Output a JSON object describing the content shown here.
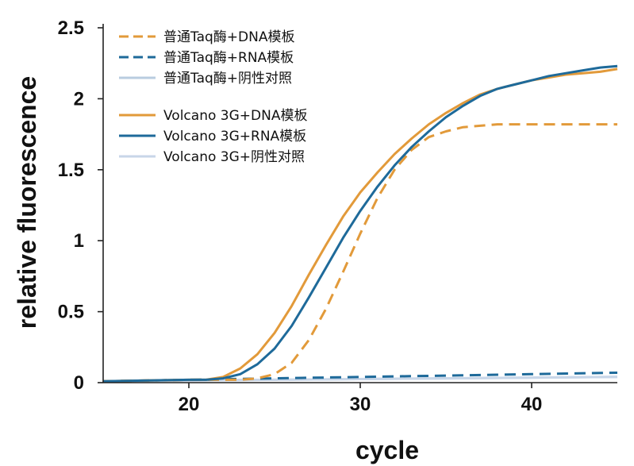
{
  "chart_data": {
    "type": "line",
    "xlabel": "cycle",
    "ylabel": "relative fluorescence",
    "xlim": [
      15,
      45
    ],
    "ylim": [
      0,
      2.5
    ],
    "x_ticks": [
      20,
      30,
      40
    ],
    "y_ticks": [
      0,
      0.5,
      1,
      1.5,
      2,
      2.5
    ],
    "x_tick_labels": [
      "20",
      "30",
      "40"
    ],
    "y_tick_labels": [
      "0",
      "0.5",
      "1",
      "1.5",
      "2",
      "2.5"
    ],
    "grid": false,
    "legend_position": "top-left",
    "series": [
      {
        "name": "普通Taq酶+DNA模板",
        "color": "#E29A3A",
        "dash": "dashed",
        "x": [
          15,
          20,
          21,
          22,
          23,
          24,
          25,
          26,
          27,
          28,
          29,
          30,
          31,
          32,
          33,
          34,
          35,
          36,
          37,
          38,
          39,
          40,
          42,
          45
        ],
        "y": [
          0.01,
          0.02,
          0.02,
          0.02,
          0.02,
          0.03,
          0.06,
          0.14,
          0.3,
          0.52,
          0.78,
          1.05,
          1.3,
          1.5,
          1.64,
          1.73,
          1.77,
          1.8,
          1.81,
          1.82,
          1.82,
          1.82,
          1.82,
          1.82
        ]
      },
      {
        "name": "普通Taq酶+RNA模板",
        "color": "#1E6A9A",
        "dash": "dashed",
        "x": [
          15,
          20,
          25,
          30,
          35,
          40,
          45
        ],
        "y": [
          0.01,
          0.02,
          0.03,
          0.04,
          0.05,
          0.06,
          0.07
        ]
      },
      {
        "name": "普通Taq酶+阴性对照",
        "color": "#B9CCE0",
        "dash": "solid",
        "x": [
          15,
          25,
          35,
          45
        ],
        "y": [
          0.01,
          0.02,
          0.03,
          0.04
        ]
      },
      {
        "name": "Volcano 3G+DNA模板",
        "color": "#E29A3A",
        "dash": "solid",
        "x": [
          15,
          20,
          21,
          22,
          23,
          24,
          25,
          26,
          27,
          28,
          29,
          30,
          31,
          32,
          33,
          34,
          35,
          36,
          37,
          38,
          39,
          40,
          41,
          42,
          43,
          44,
          45
        ],
        "y": [
          0.01,
          0.02,
          0.02,
          0.04,
          0.1,
          0.2,
          0.35,
          0.54,
          0.76,
          0.97,
          1.17,
          1.34,
          1.48,
          1.61,
          1.72,
          1.82,
          1.9,
          1.97,
          2.03,
          2.07,
          2.1,
          2.13,
          2.15,
          2.17,
          2.18,
          2.19,
          2.21
        ]
      },
      {
        "name": "Volcano 3G+RNA模板",
        "color": "#1E6A9A",
        "dash": "solid",
        "x": [
          15,
          20,
          21,
          22,
          23,
          24,
          25,
          26,
          27,
          28,
          29,
          30,
          31,
          32,
          33,
          34,
          35,
          36,
          37,
          38,
          39,
          40,
          41,
          42,
          43,
          44,
          45
        ],
        "y": [
          0.01,
          0.02,
          0.02,
          0.03,
          0.06,
          0.13,
          0.24,
          0.4,
          0.6,
          0.81,
          1.02,
          1.21,
          1.38,
          1.53,
          1.66,
          1.77,
          1.87,
          1.95,
          2.02,
          2.07,
          2.1,
          2.13,
          2.16,
          2.18,
          2.2,
          2.22,
          2.23
        ]
      },
      {
        "name": "Volcano 3G+阴性对照",
        "color": "#C8D6E8",
        "dash": "solid",
        "x": [
          15,
          25,
          35,
          45
        ],
        "y": [
          0.01,
          0.02,
          0.03,
          0.04
        ]
      }
    ]
  }
}
